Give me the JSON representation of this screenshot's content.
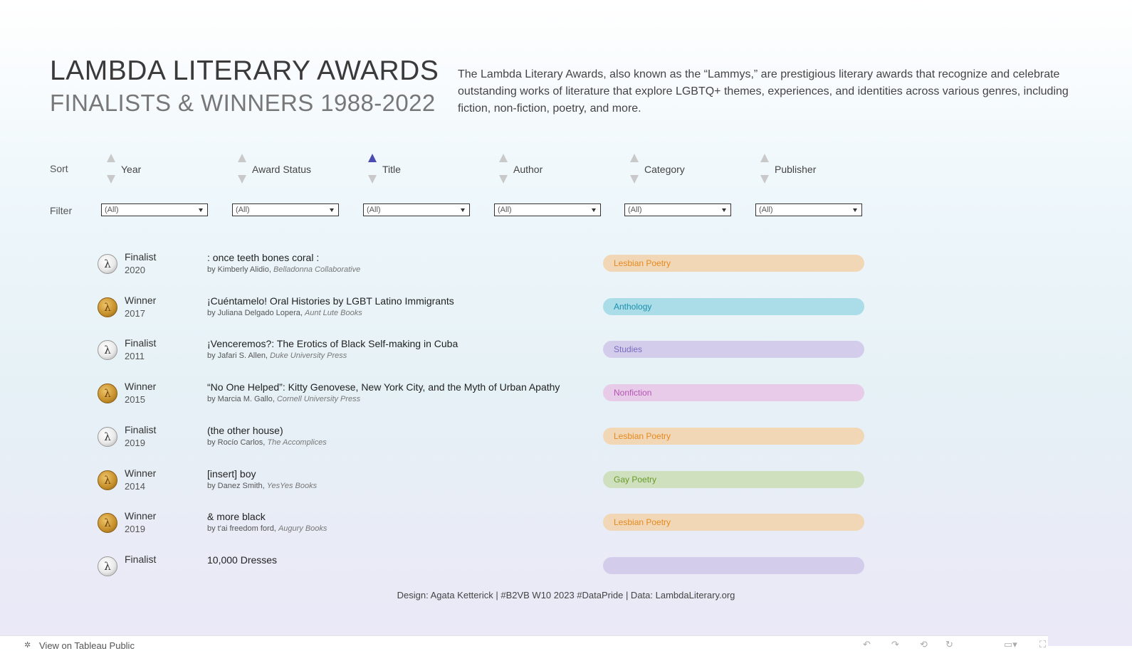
{
  "header": {
    "title": "LAMBDA LITERARY AWARDS",
    "subtitle": "FINALISTS & WINNERS 1988-2022",
    "description": "The Lambda Literary Awards, also known as the “Lammys,” are prestigious literary awards that recognize and celebrate outstanding works of literature that explore LGBTQ+ themes, experiences, and identities across various genres, including fiction, non-fiction, poetry, and more."
  },
  "sort": {
    "label": "Sort",
    "active_column": "Title",
    "active_direction": "ascending",
    "columns": [
      "Year",
      "Award Status",
      "Title",
      "Author",
      "Category",
      "Publisher"
    ]
  },
  "filter": {
    "label": "Filter",
    "values": [
      "(All)",
      "(All)",
      "(All)",
      "(All)",
      "(All)",
      "(All)"
    ]
  },
  "colors": {
    "sort_active": "#4b4cb0",
    "sort_inactive": "#c9c9c9"
  },
  "medal_glyph": "λ",
  "books": [
    {
      "status": "Finalist",
      "year": "2020",
      "title": ": once teeth bones coral :",
      "by": "by Kimberly Alidio,",
      "publisher": "Belladonna Collaborative",
      "category": "Lesbian Poetry",
      "pill_bg": "#f2d7b6",
      "pill_fg": "#e58a1f"
    },
    {
      "status": "Winner",
      "year": "2017",
      "title": "¡Cuéntamelo! Oral Histories by LGBT Latino Immigrants",
      "by": "by Juliana Delgado Lopera,",
      "publisher": "Aunt Lute Books",
      "category": "Anthology",
      "pill_bg": "#aadde8",
      "pill_fg": "#1d8fae"
    },
    {
      "status": "Finalist",
      "year": "2011",
      "title": "¡Venceremos?: The Erotics of Black Self-making in Cuba",
      "by": "by Jafari S. Allen,",
      "publisher": "Duke University Press",
      "category": "Studies",
      "pill_bg": "#d3cceb",
      "pill_fg": "#7a6bc0"
    },
    {
      "status": "Winner",
      "year": "2015",
      "title": "“No One Helped”: Kitty Genovese, New York City, and the Myth of Urban Apathy",
      "by": "by Marcia M. Gallo,",
      "publisher": "Cornell University Press",
      "category": "Nonfiction",
      "pill_bg": "#e8cbe8",
      "pill_fg": "#b355b3"
    },
    {
      "status": "Finalist",
      "year": "2019",
      "title": "(the other house)",
      "by": "by Rocío Carlos,",
      "publisher": "The Accomplices",
      "category": "Lesbian Poetry",
      "pill_bg": "#f2d7b6",
      "pill_fg": "#e58a1f"
    },
    {
      "status": "Winner",
      "year": "2014",
      "title": "[insert] boy",
      "by": "by Danez Smith,",
      "publisher": "YesYes Books",
      "category": "Gay Poetry",
      "pill_bg": "#cfe0bf",
      "pill_fg": "#6a9a2a"
    },
    {
      "status": "Winner",
      "year": "2019",
      "title": "& more black",
      "by": "by t'ai freedom ford,",
      "publisher": "Augury Books",
      "category": "Lesbian Poetry",
      "pill_bg": "#f2d7b6",
      "pill_fg": "#e58a1f"
    },
    {
      "status": "Finalist",
      "year": "",
      "title": "10,000 Dresses",
      "by": "",
      "publisher": "",
      "category": "",
      "pill_bg": "#d3cceb",
      "pill_fg": "#7a6bc0"
    }
  ],
  "credit": "Design: Agata Ketterick | #B2VB W10 2023 #DataPride | Data: LambdaLiterary.org",
  "footer": {
    "link_label": "View on Tableau Public",
    "icon": "tableau-icon"
  }
}
